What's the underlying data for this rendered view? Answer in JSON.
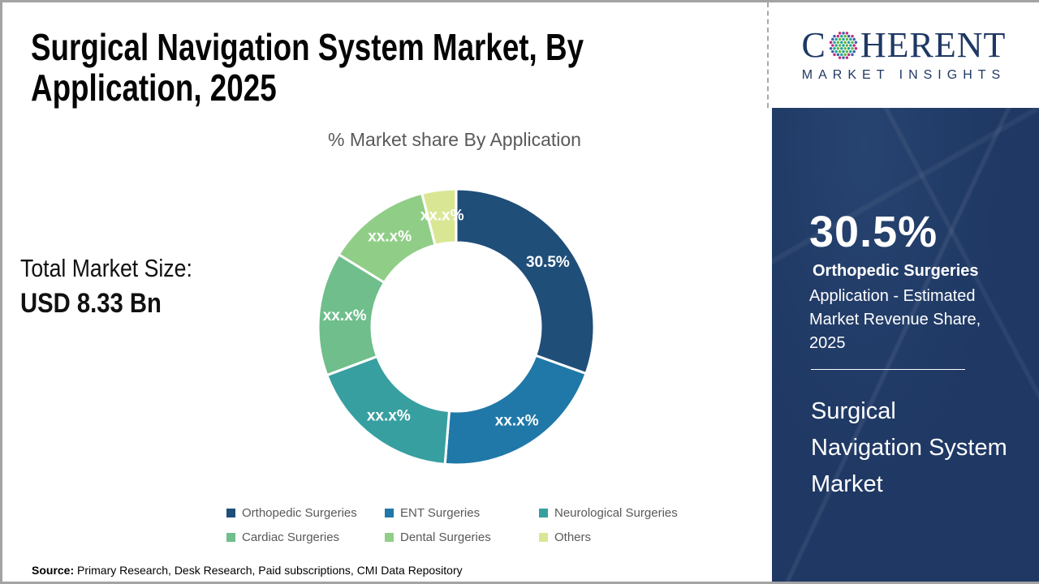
{
  "header": {
    "title": "Surgical Navigation System Market, By Application, 2025"
  },
  "market_size": {
    "label": "Total Market Size:",
    "value": "USD 8.33 Bn"
  },
  "chart_data": {
    "type": "donut",
    "title": "% Market share By Application",
    "legend_position": "bottom",
    "inner_radius_ratio": 0.61,
    "start_angle_deg": 0,
    "direction": "clockwise",
    "segments": [
      {
        "label": "Orthopedic Surgeries",
        "value": 30.5,
        "display": "30.5%",
        "color": "#1F4E79"
      },
      {
        "label": "ENT Surgeries",
        "value": 20.8,
        "display": "xx.x%",
        "color": "#1F78A8"
      },
      {
        "label": "Neurological Surgeries",
        "value": 18.0,
        "display": "xx.x%",
        "color": "#389FA0"
      },
      {
        "label": "Cardiac Surgeries",
        "value": 14.5,
        "display": "xx.x%",
        "color": "#6FBE8C"
      },
      {
        "label": "Dental Surgeries",
        "value": 12.2,
        "display": "xx.x%",
        "color": "#90CE87"
      },
      {
        "label": "Others",
        "value": 4.0,
        "display": "xx.x%",
        "color": "#D9E795"
      }
    ]
  },
  "panel": {
    "big_number": "30.5%",
    "segment_name": "Orthopedic Surgeries",
    "description": "Application - Estimated Market Revenue Share, 2025",
    "market_name": "Surgical Navigation System Market",
    "background_color": "#1F3864"
  },
  "logo": {
    "prefix": "C",
    "suffix": "HERENT",
    "tagline": "MARKET INSIGHTS",
    "text_color": "#1F3864",
    "dot_colors": {
      "outer_a": "#C62B7C",
      "outer_b": "#3A63A8",
      "inner_a": "#22A39B",
      "inner_b": "#67B445"
    }
  },
  "source": {
    "label": "Source:",
    "text": " Primary Research, Desk Research, Paid subscriptions, CMI Data Repository"
  }
}
